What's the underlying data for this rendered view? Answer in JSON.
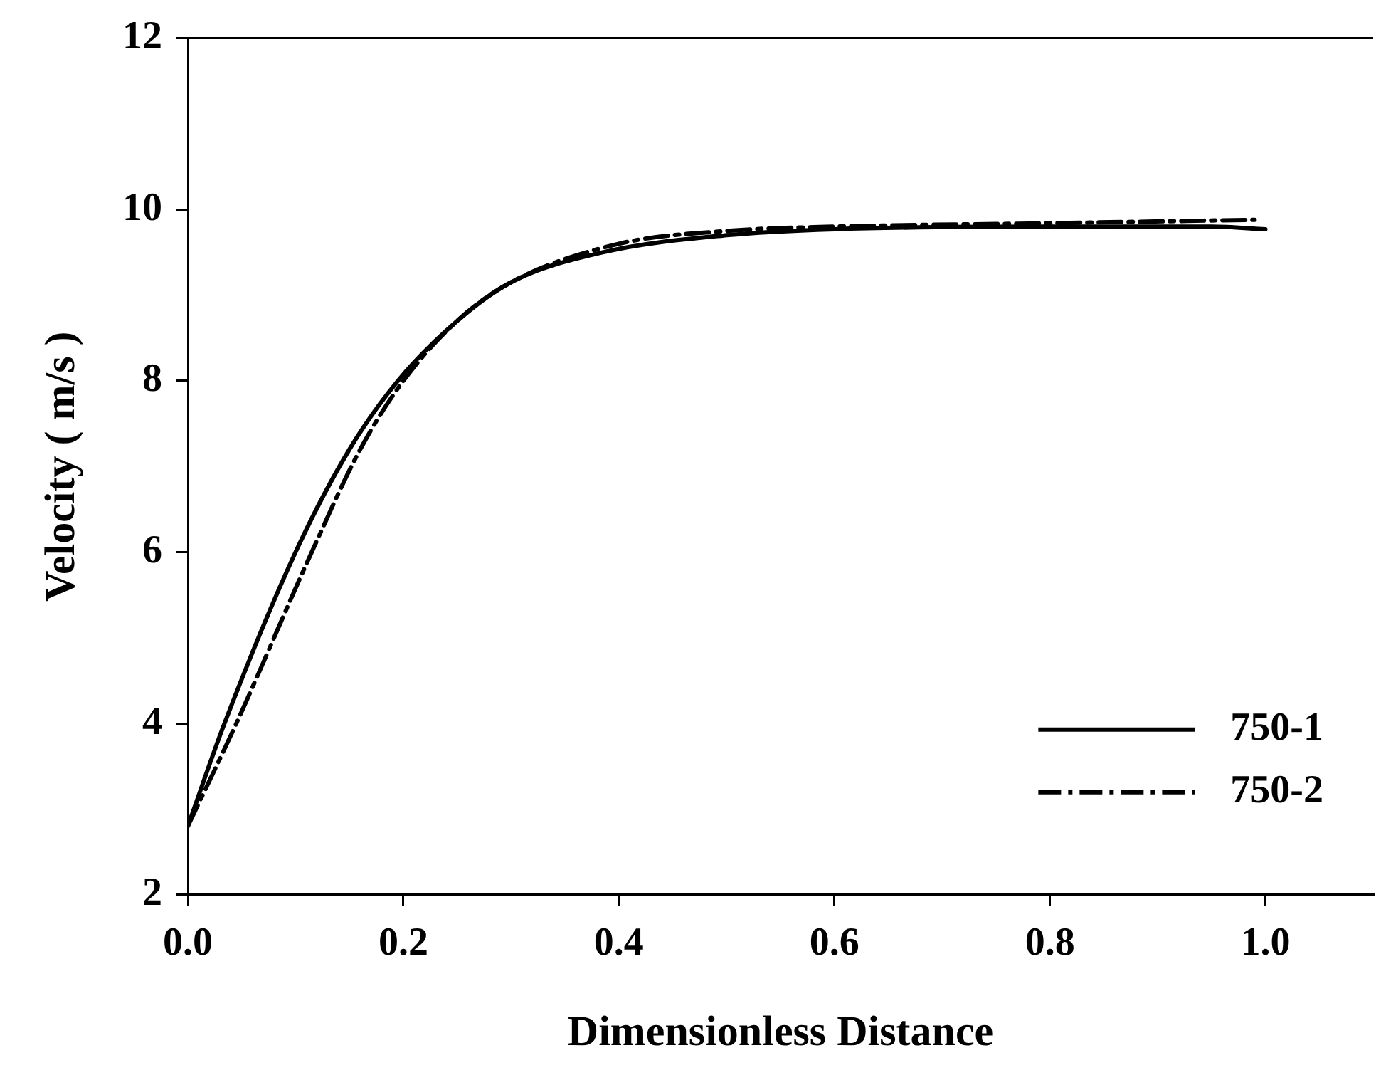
{
  "chart_data": {
    "type": "line",
    "xlabel": "Dimensionless Distance",
    "ylabel": "Velocity ( m/s )",
    "xlim": [
      0,
      1.1
    ],
    "xticks": [
      {
        "value": 0,
        "label": "0.0"
      },
      {
        "value": 0.2,
        "label": "0.2"
      },
      {
        "value": 0.4,
        "label": "0.4"
      },
      {
        "value": 0.6,
        "label": "0.6"
      },
      {
        "value": 0.8,
        "label": "0.8"
      },
      {
        "value": 1,
        "label": "1.0"
      }
    ],
    "ylim": [
      2,
      12
    ],
    "yticks": [
      2,
      4,
      6,
      8,
      10,
      12
    ],
    "grid": false,
    "legend": "bottom right",
    "marker": "none",
    "series": [
      {
        "name": "750-1",
        "color": "#000000",
        "line_style": "solid",
        "x": [
          0,
          0.034,
          0.1,
          0.15,
          0.195,
          0.25,
          0.3,
          0.385,
          0.5,
          0.6,
          0.8,
          0.95,
          1.0
        ],
        "values": [
          2.8,
          4,
          6,
          7.2,
          8,
          8.7,
          9.15,
          9.5,
          9.7,
          9.77,
          9.8,
          9.8,
          9.77
        ]
      },
      {
        "name": "750-2",
        "color": "#000000",
        "line_style": "dashdot",
        "x": [
          0,
          0.045,
          0.115,
          0.16,
          0.2,
          0.25,
          0.3,
          0.4,
          0.5,
          0.6,
          0.8,
          0.99
        ],
        "values": [
          2.8,
          4,
          6,
          7.2,
          8,
          8.7,
          9.15,
          9.6,
          9.75,
          9.8,
          9.84,
          9.88
        ]
      }
    ]
  }
}
